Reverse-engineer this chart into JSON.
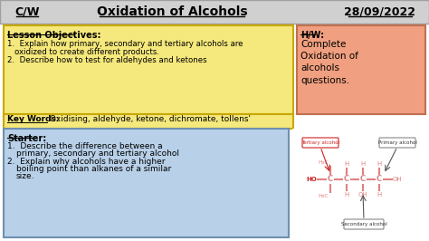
{
  "title_cw": "C/W",
  "title_main": "Oxidation of Alcohols",
  "title_date": "28/09/2022",
  "header_bg": "#d0d0d0",
  "header_edge": "#a0a0a0",
  "objectives_bg": "#f5e87c",
  "objectives_border": "#c8a800",
  "hw_bg": "#f0a080",
  "hw_border": "#c07050",
  "keywords_bg": "#f5e87c",
  "keywords_border": "#c8a800",
  "starter_bg": "#b8d0e8",
  "starter_border": "#7090b0",
  "objectives_title": "Lesson Objectives:",
  "hw_title": "H/W:",
  "hw_text": "Complete\nOxidation of\nalcohols\nquestions.",
  "keywords_label": "Key Words:",
  "keywords_text": " Oxidising, aldehyde, ketone, dichromate, tollens'",
  "starter_title": "Starter:",
  "salmon": "#e08080",
  "red": "#cc2222",
  "dark": "#333333",
  "gray_edge": "#888888"
}
